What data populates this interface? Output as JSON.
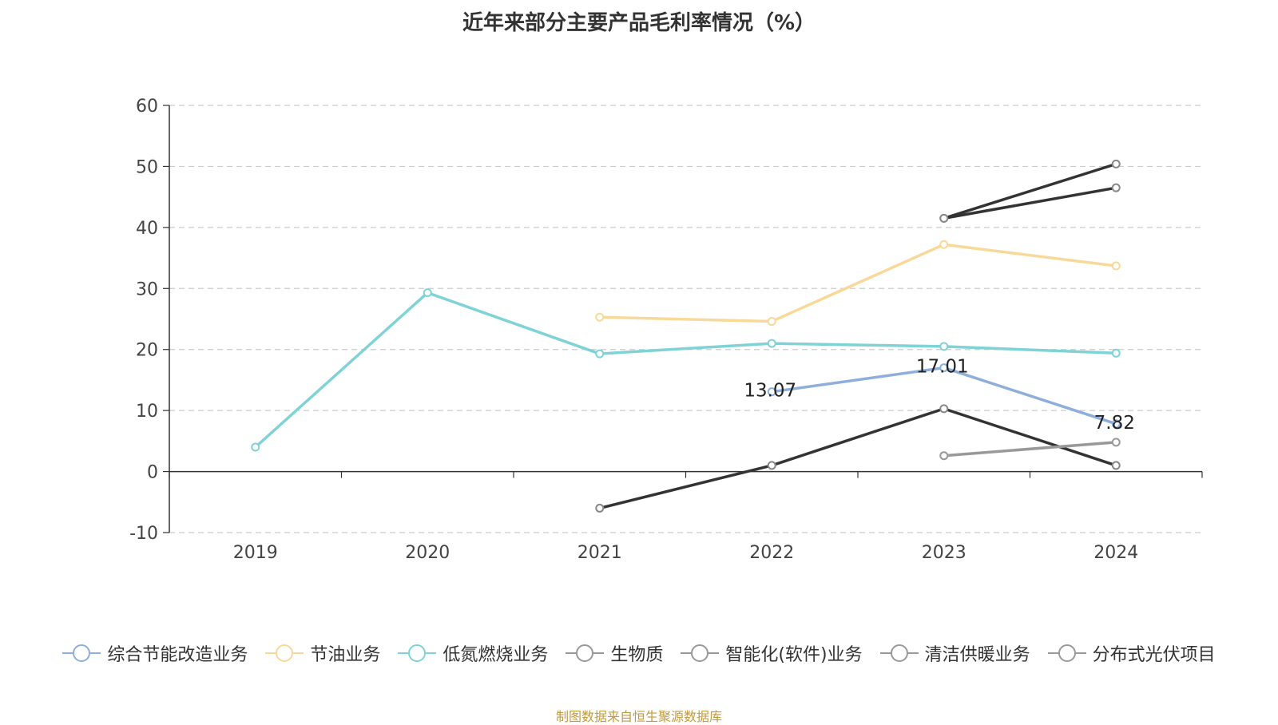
{
  "chart_data": {
    "type": "line",
    "title": "近年来部分主要产品毛利率情况（%）",
    "categories": [
      "2019",
      "2020",
      "2021",
      "2022",
      "2023",
      "2024"
    ],
    "ylim": [
      -10,
      60
    ],
    "yticks": [
      -10,
      0,
      10,
      20,
      30,
      40,
      50,
      60
    ],
    "grid": true,
    "legend_position": "bottom",
    "series": [
      {
        "name": "综合节能改造业务",
        "color": "#8eaedc",
        "values": [
          null,
          null,
          null,
          13.07,
          17.01,
          7.82
        ],
        "labels": [
          null,
          null,
          null,
          "13.07",
          "17.01",
          "7.82"
        ]
      },
      {
        "name": "节油业务",
        "color": "#f9d99a",
        "values": [
          null,
          null,
          25.3,
          24.6,
          37.2,
          33.7
        ]
      },
      {
        "name": "低氮燃烧业务",
        "color": "#7fd3d6",
        "values": [
          4.0,
          29.3,
          19.3,
          21.0,
          20.5,
          19.4
        ]
      },
      {
        "name": "生物质",
        "color": "#333333",
        "values": [
          null,
          null,
          null,
          null,
          41.5,
          50.4
        ]
      },
      {
        "name": "智能化(软件)业务",
        "color": "#333333",
        "values": [
          null,
          null,
          null,
          null,
          41.5,
          46.5
        ]
      },
      {
        "name": "清洁供暖业务",
        "color": "#333333",
        "values": [
          null,
          null,
          -6.0,
          1.0,
          10.3,
          1.0
        ]
      },
      {
        "name": "分布式光伏项目",
        "color": "#999999",
        "values": [
          null,
          null,
          null,
          null,
          2.6,
          4.8
        ]
      }
    ]
  },
  "legend_marker_colors": [
    "#8eaedc",
    "#f9d99a",
    "#7fd3d6",
    "#999999",
    "#999999",
    "#999999",
    "#999999"
  ],
  "source_note": "制图数据来自恒生聚源数据库"
}
